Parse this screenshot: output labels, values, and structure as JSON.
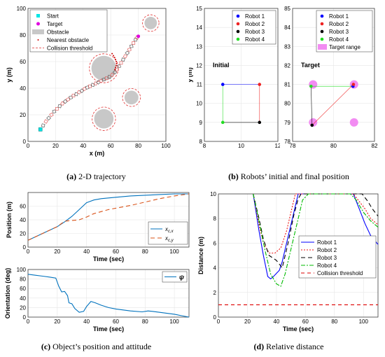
{
  "captions": {
    "a": {
      "tag": "(a)",
      "text": " 2-D trajectory"
    },
    "b": {
      "tag": "(b)",
      "text": " Robots’ initial and final position"
    },
    "c": {
      "tag": "(c)",
      "text": " Object’s position and attitude"
    },
    "d": {
      "tag": "(d)",
      "text": " Relative distance"
    }
  },
  "chart_data": [
    {
      "id": "trajectory",
      "type": "scatter",
      "xlabel": "x (m)",
      "ylabel": "y (m)",
      "xlim": [
        0,
        100
      ],
      "ylim": [
        0,
        100
      ],
      "xticks": [
        0,
        20,
        40,
        60,
        80,
        100
      ],
      "yticks": [
        0,
        20,
        40,
        60,
        80,
        100
      ],
      "grid": true,
      "legend": {
        "position": "top-left",
        "entries": [
          "Start",
          "Target",
          "Obstacle",
          "Nearest obstacle",
          "Collision threshold"
        ]
      },
      "start": {
        "x": 9,
        "y": 9,
        "color": "#00e5e5"
      },
      "target": {
        "x": 80,
        "y": 79,
        "color": "#e000e0"
      },
      "obstacles": [
        {
          "x": 55,
          "y": 55,
          "r": 9
        },
        {
          "x": 55,
          "y": 17,
          "r": 7
        },
        {
          "x": 75,
          "y": 33,
          "r": 5
        },
        {
          "x": 89,
          "y": 89,
          "r": 4.5
        }
      ],
      "threshold_margin": 1.5,
      "path": [
        [
          9,
          9
        ],
        [
          11,
          12
        ],
        [
          13,
          15
        ],
        [
          15,
          17.5
        ],
        [
          17,
          20
        ],
        [
          19,
          22.5
        ],
        [
          21,
          24.5
        ],
        [
          23,
          26.5
        ],
        [
          25,
          28.5
        ],
        [
          27,
          30
        ],
        [
          29,
          31.5
        ],
        [
          31,
          33
        ],
        [
          33,
          34.5
        ],
        [
          35,
          35.5
        ],
        [
          37,
          37
        ],
        [
          39,
          38
        ],
        [
          41,
          39.5
        ],
        [
          43,
          40.5
        ],
        [
          45,
          41.5
        ],
        [
          47,
          42.5
        ],
        [
          49,
          43.5
        ],
        [
          51,
          44.5
        ],
        [
          53,
          45.5
        ],
        [
          55,
          46.5
        ],
        [
          57,
          47.5
        ],
        [
          59,
          48.5
        ],
        [
          61,
          50
        ],
        [
          63,
          52
        ],
        [
          64.5,
          54
        ],
        [
          66,
          56.5
        ],
        [
          67.5,
          59
        ],
        [
          69,
          61.5
        ],
        [
          70.5,
          64
        ],
        [
          72,
          66.5
        ],
        [
          73.5,
          69
        ],
        [
          75,
          71.5
        ],
        [
          76.5,
          74
        ],
        [
          78,
          76.5
        ],
        [
          79,
          78
        ]
      ],
      "nearest_obstacle_points": [
        [
          63,
          54
        ],
        [
          63.5,
          55.5
        ],
        [
          64,
          57
        ],
        [
          64.2,
          58.5
        ],
        [
          64,
          60
        ],
        [
          63.5,
          61.5
        ],
        [
          62.8,
          63
        ],
        [
          62,
          64.5
        ],
        [
          61,
          66
        ]
      ]
    },
    {
      "id": "initial",
      "type": "scatter",
      "xlabel": "",
      "ylabel": "y (m)",
      "xlim": [
        8,
        12
      ],
      "ylim": [
        8,
        15
      ],
      "xticks": [
        8,
        10,
        12
      ],
      "yticks": [
        8,
        9,
        10,
        11,
        12,
        13,
        14,
        15
      ],
      "grid": true,
      "annotation": "Initial",
      "legend": {
        "position": "top-right",
        "entries": [
          "Robot 1",
          "Robot 2",
          "Robot 3",
          "Robot 4"
        ]
      },
      "robots": [
        {
          "name": "Robot 1",
          "x": 9,
          "y": 11,
          "color": "#0000ff"
        },
        {
          "name": "Robot 2",
          "x": 11,
          "y": 11,
          "color": "#ee2222"
        },
        {
          "name": "Robot 3",
          "x": 11,
          "y": 9,
          "color": "#000000"
        },
        {
          "name": "Robot 4",
          "x": 9,
          "y": 9,
          "color": "#22dd22"
        }
      ]
    },
    {
      "id": "target",
      "type": "scatter",
      "xlabel": "",
      "ylabel": "",
      "xlim": [
        78,
        82
      ],
      "ylim": [
        78,
        85
      ],
      "xticks": [
        78,
        80,
        82
      ],
      "yticks": [
        78,
        79,
        80,
        81,
        82,
        83,
        84,
        85
      ],
      "grid": true,
      "annotation": "Target",
      "legend": {
        "position": "top-right",
        "entries": [
          "Robot 1",
          "Robot 2",
          "Robot 3",
          "Robot 4",
          "Target range"
        ]
      },
      "target_range_color": "#f28cf2",
      "target_corners": [
        [
          79,
          81
        ],
        [
          81,
          81
        ],
        [
          81,
          79
        ],
        [
          79,
          79
        ]
      ],
      "robots": [
        {
          "name": "Robot 1",
          "x": 80.95,
          "y": 80.9,
          "color": "#0000ff"
        },
        {
          "name": "Robot 2",
          "x": 80.97,
          "y": 81.0,
          "color": "#ee2222"
        },
        {
          "name": "Robot 3",
          "x": 78.95,
          "y": 78.85,
          "color": "#000000"
        },
        {
          "name": "Robot 4",
          "x": 78.9,
          "y": 80.9,
          "color": "#22dd22"
        }
      ]
    },
    {
      "id": "position",
      "type": "line",
      "xlabel": "Time (sec)",
      "ylabel": "Position (m)",
      "xlim": [
        0,
        110
      ],
      "ylim": [
        0,
        80
      ],
      "xticks": [
        0,
        20,
        40,
        60,
        80,
        100
      ],
      "yticks": [
        0,
        20,
        40,
        60
      ],
      "grid": true,
      "legend": {
        "position": "bottom-right"
      },
      "series": [
        {
          "name": "x_{c,x}",
          "color": "#0072bd",
          "dash": "",
          "points": [
            [
              0,
              10
            ],
            [
              5,
              15
            ],
            [
              10,
              20
            ],
            [
              15,
              25
            ],
            [
              20,
              30
            ],
            [
              25,
              37
            ],
            [
              30,
              45
            ],
            [
              35,
              55
            ],
            [
              40,
              65
            ],
            [
              45,
              69
            ],
            [
              50,
              71
            ],
            [
              60,
              73
            ],
            [
              70,
              75
            ],
            [
              80,
              76
            ],
            [
              90,
              77
            ],
            [
              100,
              78
            ],
            [
              110,
              78
            ]
          ]
        },
        {
          "name": "x_{c,y}",
          "color": "#d95319",
          "dash": "6,4",
          "points": [
            [
              0,
              10
            ],
            [
              5,
              15
            ],
            [
              10,
              20
            ],
            [
              15,
              25
            ],
            [
              20,
              30
            ],
            [
              25,
              38
            ],
            [
              30,
              39
            ],
            [
              35,
              40
            ],
            [
              40,
              44
            ],
            [
              45,
              49
            ],
            [
              50,
              52
            ],
            [
              55,
              55
            ],
            [
              60,
              57
            ],
            [
              70,
              61
            ],
            [
              80,
              66
            ],
            [
              90,
              71
            ],
            [
              100,
              75
            ],
            [
              110,
              78
            ]
          ]
        }
      ]
    },
    {
      "id": "orientation",
      "type": "line",
      "xlabel": "Time (sec)",
      "ylabel": "Orientation (deg)",
      "xlim": [
        0,
        110
      ],
      "ylim": [
        0,
        100
      ],
      "xticks": [
        0,
        20,
        40,
        60,
        80,
        100
      ],
      "yticks": [
        0,
        20,
        40,
        60,
        80,
        100
      ],
      "grid": true,
      "legend": {
        "position": "top-right"
      },
      "series": [
        {
          "name": "ψ",
          "color": "#0072bd",
          "dash": "",
          "points": [
            [
              0,
              90
            ],
            [
              5,
              88
            ],
            [
              10,
              86
            ],
            [
              15,
              84
            ],
            [
              19,
              82
            ],
            [
              21,
              65
            ],
            [
              23,
              53
            ],
            [
              25,
              54
            ],
            [
              27,
              45
            ],
            [
              28,
              30
            ],
            [
              30,
              28
            ],
            [
              32,
              18
            ],
            [
              35,
              10
            ],
            [
              38,
              12
            ],
            [
              40,
              22
            ],
            [
              43,
              33
            ],
            [
              46,
              30
            ],
            [
              50,
              25
            ],
            [
              55,
              20
            ],
            [
              60,
              17
            ],
            [
              65,
              15
            ],
            [
              70,
              13
            ],
            [
              78,
              11
            ],
            [
              82,
              13
            ],
            [
              85,
              12
            ],
            [
              90,
              10
            ],
            [
              95,
              8
            ],
            [
              100,
              6
            ],
            [
              105,
              3
            ],
            [
              110,
              0
            ]
          ]
        }
      ]
    },
    {
      "id": "distance",
      "type": "line",
      "xlabel": "Time (sec)",
      "ylabel": "Distance (m)",
      "xlim": [
        0,
        110
      ],
      "ylim": [
        0,
        10
      ],
      "xticks": [
        0,
        20,
        40,
        60,
        80,
        100
      ],
      "yticks": [
        0,
        2,
        4,
        6,
        8,
        10
      ],
      "grid": true,
      "legend": {
        "position": "center-right",
        "entries": [
          "Robot 1",
          "Robot 2",
          "Robot 3",
          "Robot 4",
          "Collision threshold"
        ]
      },
      "series": [
        {
          "name": "Robot 1",
          "color": "#0000ff",
          "dash": "",
          "points": [
            [
              24,
              10
            ],
            [
              28,
              7
            ],
            [
              31,
              5
            ],
            [
              34,
              3.3
            ],
            [
              36,
              3.1
            ],
            [
              38,
              3.3
            ],
            [
              42,
              3.8
            ],
            [
              44,
              4.5
            ],
            [
              47,
              6
            ],
            [
              51,
              8
            ],
            [
              55,
              10
            ],
            [
              93,
              10
            ],
            [
              97,
              8.8
            ],
            [
              101,
              7.6
            ],
            [
              105,
              6.6
            ],
            [
              110,
              5.9
            ]
          ]
        },
        {
          "name": "Robot 2",
          "color": "#ee1111",
          "dash": "2,2",
          "points": [
            [
              24,
              10
            ],
            [
              28,
              7.5
            ],
            [
              31,
              6
            ],
            [
              35,
              5.2
            ],
            [
              39,
              5.2
            ],
            [
              43,
              5.6
            ],
            [
              47,
              7
            ],
            [
              51,
              9
            ],
            [
              53,
              10
            ],
            [
              93,
              10
            ],
            [
              97,
              9.4
            ],
            [
              101,
              8.8
            ],
            [
              105,
              8
            ],
            [
              110,
              7.5
            ]
          ]
        },
        {
          "name": "Robot 3",
          "color": "#000000",
          "dash": "6,4",
          "points": [
            [
              24,
              10
            ],
            [
              28,
              8
            ],
            [
              31,
              6.3
            ],
            [
              35,
              5
            ],
            [
              40,
              4.6
            ],
            [
              44,
              4
            ],
            [
              48,
              6
            ],
            [
              52,
              8.3
            ],
            [
              55,
              9.6
            ],
            [
              57,
              10
            ],
            [
              99,
              10
            ],
            [
              103,
              9.4
            ],
            [
              106,
              8.8
            ],
            [
              110,
              8.2
            ]
          ]
        },
        {
          "name": "Robot 4",
          "color": "#00bb00",
          "dash": "6,2,2,2",
          "points": [
            [
              24,
              10
            ],
            [
              28,
              7.8
            ],
            [
              32,
              5.5
            ],
            [
              36,
              3.5
            ],
            [
              40,
              2.7
            ],
            [
              43,
              2.5
            ],
            [
              46,
              3.5
            ],
            [
              50,
              5.5
            ],
            [
              55,
              8
            ],
            [
              58,
              9.5
            ],
            [
              62,
              10
            ],
            [
              91,
              10
            ],
            [
              95,
              9.5
            ],
            [
              100,
              8.5
            ],
            [
              105,
              7.8
            ],
            [
              110,
              7.3
            ]
          ]
        },
        {
          "name": "Collision threshold",
          "color": "#dd0000",
          "dash": "5,4",
          "points": [
            [
              0,
              1
            ],
            [
              110,
              1
            ]
          ]
        }
      ]
    }
  ]
}
